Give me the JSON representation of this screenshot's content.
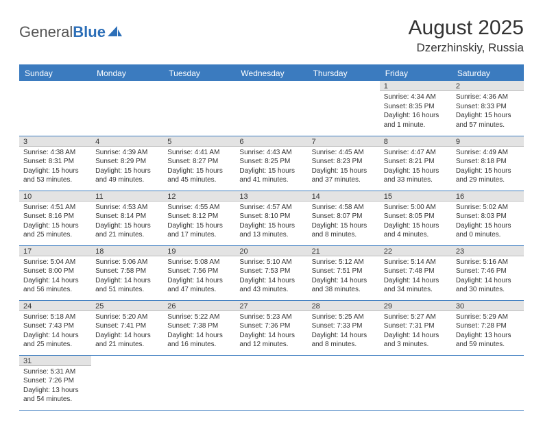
{
  "logo": {
    "first": "General",
    "second": "Blue"
  },
  "title": "August 2025",
  "location": "Dzerzhinskiy, Russia",
  "headers": [
    "Sunday",
    "Monday",
    "Tuesday",
    "Wednesday",
    "Thursday",
    "Friday",
    "Saturday"
  ],
  "colors": {
    "brand_blue": "#3b7bbf",
    "grey_bar": "#e3e3e3",
    "text": "#333333",
    "white": "#ffffff"
  },
  "weeks": [
    [
      {
        "blank": true
      },
      {
        "blank": true
      },
      {
        "blank": true
      },
      {
        "blank": true
      },
      {
        "blank": true
      },
      {
        "n": "1",
        "sr": "4:34 AM",
        "ss": "8:35 PM",
        "dl": "16 hours and 1 minute."
      },
      {
        "n": "2",
        "sr": "4:36 AM",
        "ss": "8:33 PM",
        "dl": "15 hours and 57 minutes."
      }
    ],
    [
      {
        "n": "3",
        "sr": "4:38 AM",
        "ss": "8:31 PM",
        "dl": "15 hours and 53 minutes."
      },
      {
        "n": "4",
        "sr": "4:39 AM",
        "ss": "8:29 PM",
        "dl": "15 hours and 49 minutes."
      },
      {
        "n": "5",
        "sr": "4:41 AM",
        "ss": "8:27 PM",
        "dl": "15 hours and 45 minutes."
      },
      {
        "n": "6",
        "sr": "4:43 AM",
        "ss": "8:25 PM",
        "dl": "15 hours and 41 minutes."
      },
      {
        "n": "7",
        "sr": "4:45 AM",
        "ss": "8:23 PM",
        "dl": "15 hours and 37 minutes."
      },
      {
        "n": "8",
        "sr": "4:47 AM",
        "ss": "8:21 PM",
        "dl": "15 hours and 33 minutes."
      },
      {
        "n": "9",
        "sr": "4:49 AM",
        "ss": "8:18 PM",
        "dl": "15 hours and 29 minutes."
      }
    ],
    [
      {
        "n": "10",
        "sr": "4:51 AM",
        "ss": "8:16 PM",
        "dl": "15 hours and 25 minutes."
      },
      {
        "n": "11",
        "sr": "4:53 AM",
        "ss": "8:14 PM",
        "dl": "15 hours and 21 minutes."
      },
      {
        "n": "12",
        "sr": "4:55 AM",
        "ss": "8:12 PM",
        "dl": "15 hours and 17 minutes."
      },
      {
        "n": "13",
        "sr": "4:57 AM",
        "ss": "8:10 PM",
        "dl": "15 hours and 13 minutes."
      },
      {
        "n": "14",
        "sr": "4:58 AM",
        "ss": "8:07 PM",
        "dl": "15 hours and 8 minutes."
      },
      {
        "n": "15",
        "sr": "5:00 AM",
        "ss": "8:05 PM",
        "dl": "15 hours and 4 minutes."
      },
      {
        "n": "16",
        "sr": "5:02 AM",
        "ss": "8:03 PM",
        "dl": "15 hours and 0 minutes."
      }
    ],
    [
      {
        "n": "17",
        "sr": "5:04 AM",
        "ss": "8:00 PM",
        "dl": "14 hours and 56 minutes."
      },
      {
        "n": "18",
        "sr": "5:06 AM",
        "ss": "7:58 PM",
        "dl": "14 hours and 51 minutes."
      },
      {
        "n": "19",
        "sr": "5:08 AM",
        "ss": "7:56 PM",
        "dl": "14 hours and 47 minutes."
      },
      {
        "n": "20",
        "sr": "5:10 AM",
        "ss": "7:53 PM",
        "dl": "14 hours and 43 minutes."
      },
      {
        "n": "21",
        "sr": "5:12 AM",
        "ss": "7:51 PM",
        "dl": "14 hours and 38 minutes."
      },
      {
        "n": "22",
        "sr": "5:14 AM",
        "ss": "7:48 PM",
        "dl": "14 hours and 34 minutes."
      },
      {
        "n": "23",
        "sr": "5:16 AM",
        "ss": "7:46 PM",
        "dl": "14 hours and 30 minutes."
      }
    ],
    [
      {
        "n": "24",
        "sr": "5:18 AM",
        "ss": "7:43 PM",
        "dl": "14 hours and 25 minutes."
      },
      {
        "n": "25",
        "sr": "5:20 AM",
        "ss": "7:41 PM",
        "dl": "14 hours and 21 minutes."
      },
      {
        "n": "26",
        "sr": "5:22 AM",
        "ss": "7:38 PM",
        "dl": "14 hours and 16 minutes."
      },
      {
        "n": "27",
        "sr": "5:23 AM",
        "ss": "7:36 PM",
        "dl": "14 hours and 12 minutes."
      },
      {
        "n": "28",
        "sr": "5:25 AM",
        "ss": "7:33 PM",
        "dl": "14 hours and 8 minutes."
      },
      {
        "n": "29",
        "sr": "5:27 AM",
        "ss": "7:31 PM",
        "dl": "14 hours and 3 minutes."
      },
      {
        "n": "30",
        "sr": "5:29 AM",
        "ss": "7:28 PM",
        "dl": "13 hours and 59 minutes."
      }
    ],
    [
      {
        "n": "31",
        "sr": "5:31 AM",
        "ss": "7:26 PM",
        "dl": "13 hours and 54 minutes."
      },
      {
        "trailing": true
      },
      {
        "trailing": true
      },
      {
        "trailing": true
      },
      {
        "trailing": true
      },
      {
        "trailing": true
      },
      {
        "trailing": true
      }
    ]
  ],
  "labels": {
    "sunrise": "Sunrise: ",
    "sunset": "Sunset: ",
    "daylight": "Daylight: "
  }
}
